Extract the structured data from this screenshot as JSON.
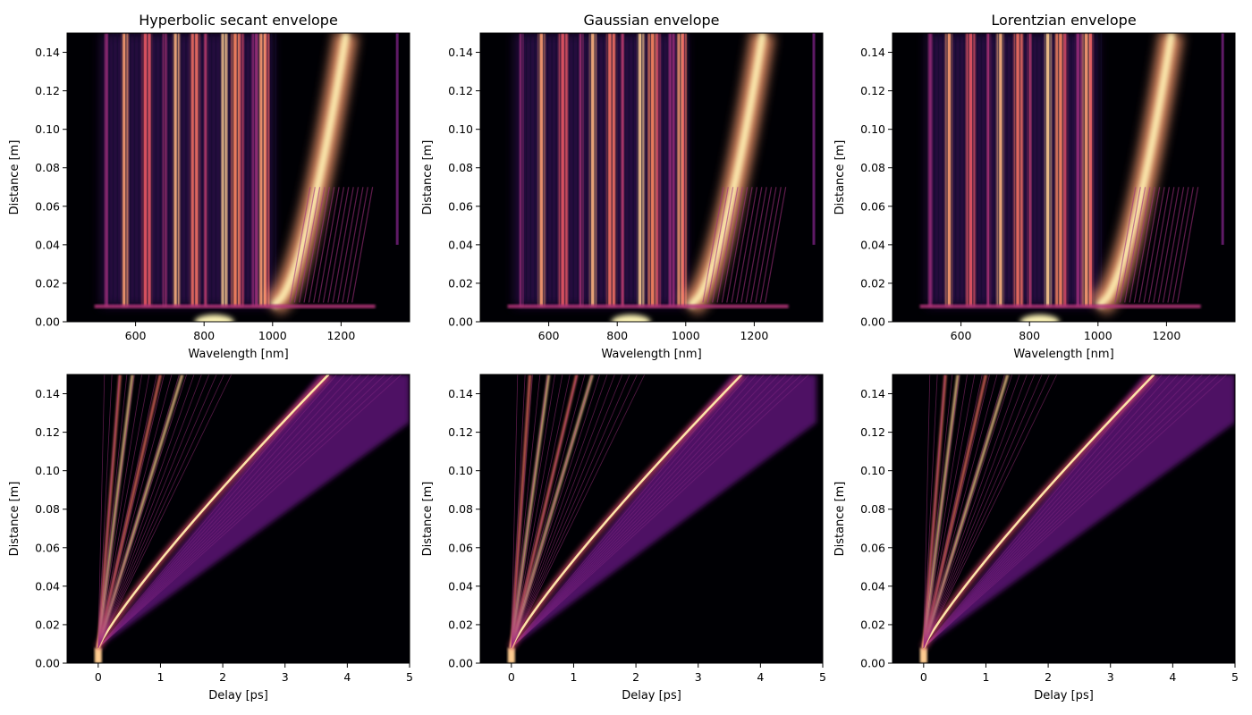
{
  "chart_data": [
    {
      "type": "heatmap",
      "title": "Hyperbolic secant envelope",
      "xlabel": "Wavelength [nm]",
      "ylabel": "Distance [m]",
      "xlim": [
        400,
        1400
      ],
      "ylim": [
        0,
        0.15
      ],
      "xticks": [
        600,
        800,
        1000,
        1200
      ],
      "yticks": [
        "0.00",
        "0.02",
        "0.04",
        "0.06",
        "0.08",
        "0.10",
        "0.12",
        "0.14"
      ],
      "colormap": "magma",
      "kind": "spectral",
      "features": {
        "pump_center": 830,
        "soliton_start": 1000,
        "soliton_end": 1215,
        "dispersive_waves": [
          510,
          560,
          620,
          680,
          710,
          760,
          800,
          850,
          880,
          905,
          940,
          960,
          980
        ],
        "right_tail": 1360
      }
    },
    {
      "type": "heatmap",
      "title": "Gaussian envelope",
      "xlabel": "Wavelength [nm]",
      "ylabel": "Distance [m]",
      "xlim": [
        400,
        1400
      ],
      "ylim": [
        0,
        0.15
      ],
      "xticks": [
        600,
        800,
        1000,
        1200
      ],
      "yticks": [
        "0.00",
        "0.02",
        "0.04",
        "0.06",
        "0.08",
        "0.10",
        "0.12",
        "0.14"
      ],
      "colormap": "magma",
      "kind": "spectral",
      "features": {
        "pump_center": 840,
        "soliton_start": 1010,
        "soliton_end": 1225,
        "dispersive_waves": [
          515,
          570,
          630,
          690,
          720,
          770,
          810,
          860,
          890,
          915,
          950,
          975,
          990
        ],
        "right_tail": 1370
      }
    },
    {
      "type": "heatmap",
      "title": "Lorentzian envelope",
      "xlabel": "Wavelength [nm]",
      "ylabel": "Distance [m]",
      "xlim": [
        400,
        1400
      ],
      "ylim": [
        0,
        0.15
      ],
      "xticks": [
        600,
        800,
        1000,
        1200
      ],
      "yticks": [
        "0.00",
        "0.02",
        "0.04",
        "0.06",
        "0.08",
        "0.10",
        "0.12",
        "0.14"
      ],
      "colormap": "magma",
      "kind": "spectral",
      "features": {
        "pump_center": 830,
        "soliton_start": 1000,
        "soliton_end": 1215,
        "dispersive_waves": [
          505,
          555,
          615,
          675,
          705,
          755,
          795,
          845,
          875,
          900,
          935,
          955,
          975
        ],
        "right_tail": 1360
      }
    },
    {
      "type": "heatmap",
      "title": "",
      "xlabel": "Delay [ps]",
      "ylabel": "Distance [m]",
      "xlim": [
        -0.5,
        5
      ],
      "ylim": [
        0,
        0.15
      ],
      "xticks": [
        0,
        1,
        2,
        3,
        4,
        5
      ],
      "yticks": [
        "0.00",
        "0.02",
        "0.04",
        "0.06",
        "0.08",
        "0.10",
        "0.12",
        "0.14"
      ],
      "colormap": "magma",
      "kind": "temporal",
      "features": {
        "fission_distance": 0.008,
        "main_soliton_delay_at_top": 3.7,
        "fan_delay_at_top": 5.0,
        "bright_solitons": [
          0.35,
          0.55,
          1.0,
          1.35
        ]
      }
    },
    {
      "type": "heatmap",
      "title": "",
      "xlabel": "Delay [ps]",
      "ylabel": "Distance [m]",
      "xlim": [
        -0.5,
        5
      ],
      "ylim": [
        0,
        0.15
      ],
      "xticks": [
        0,
        1,
        2,
        3,
        4,
        5
      ],
      "yticks": [
        "0.00",
        "0.02",
        "0.04",
        "0.06",
        "0.08",
        "0.10",
        "0.12",
        "0.14"
      ],
      "colormap": "magma",
      "kind": "temporal",
      "features": {
        "fission_distance": 0.008,
        "main_soliton_delay_at_top": 3.7,
        "fan_delay_at_top": 4.9,
        "bright_solitons": [
          0.3,
          0.6,
          1.05,
          1.3
        ]
      }
    },
    {
      "type": "heatmap",
      "title": "",
      "xlabel": "Delay [ps]",
      "ylabel": "Distance [m]",
      "xlim": [
        -0.5,
        5
      ],
      "ylim": [
        0,
        0.15
      ],
      "xticks": [
        0,
        1,
        2,
        3,
        4,
        5
      ],
      "yticks": [
        "0.00",
        "0.02",
        "0.04",
        "0.06",
        "0.08",
        "0.10",
        "0.12",
        "0.14"
      ],
      "colormap": "magma",
      "kind": "temporal",
      "features": {
        "fission_distance": 0.008,
        "main_soliton_delay_at_top": 3.7,
        "fan_delay_at_top": 5.0,
        "bright_solitons": [
          0.35,
          0.55,
          1.0,
          1.35
        ]
      }
    }
  ]
}
